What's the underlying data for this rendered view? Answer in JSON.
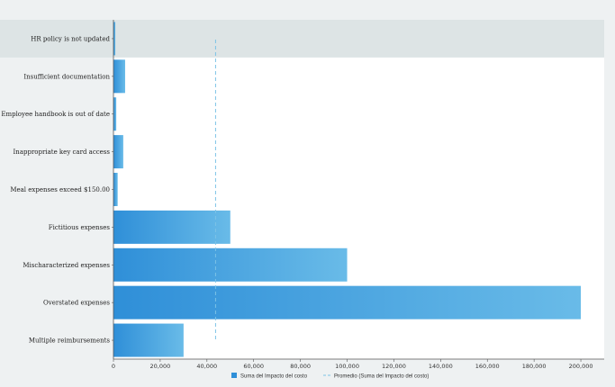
{
  "colors": {
    "bar_light": "#69bbe8",
    "bar_dark": "#2f8fd8",
    "average_line": "#7cc3e6",
    "highlight_row": "#dde4e5",
    "background": "#eef1f2",
    "plot_background": "#ffffff"
  },
  "chart_data": {
    "type": "bar",
    "orientation": "horizontal",
    "categories": [
      "HR policy is not updated",
      "Insufficient documentation",
      "Employee handbook is out of date",
      "Inappropriate key card access",
      "Meal expenses exceed $150.00",
      "Fictitious expenses",
      "Mischaracterized expenses",
      "Overstated expenses",
      "Multiple reimbursements"
    ],
    "series": [
      {
        "name": "Suma del Impacto del costo",
        "values": [
          800,
          5000,
          1200,
          4200,
          1800,
          50000,
          100000,
          200000,
          30000
        ]
      }
    ],
    "average": {
      "name": "Promedio (Suma del Impacto del costo)",
      "value": 43700
    },
    "xlim": [
      0,
      210000
    ],
    "x_ticks": [
      0,
      20000,
      40000,
      60000,
      80000,
      100000,
      120000,
      140000,
      160000,
      180000,
      200000
    ],
    "x_tick_labels": [
      "0",
      "20,000",
      "40,000",
      "60,000",
      "80,000",
      "100,000",
      "120,000",
      "140,000",
      "160,000",
      "180,000",
      "200,000"
    ],
    "highlighted_category": "HR policy is not updated",
    "legend_position": "bottom",
    "grid": false
  }
}
